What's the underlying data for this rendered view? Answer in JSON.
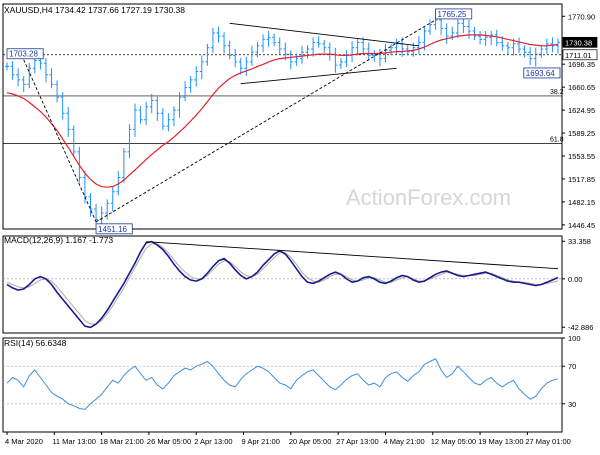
{
  "header": {
    "symbol_line": "XAUUSD,H4  1734.42 1737.66 1727.19 1730.38",
    "macd_label": "MACD(12,26,9) 1.167 -1.773",
    "rsi_label": "RSI(14) 56.6348",
    "watermark": "ActionForex.com"
  },
  "colors": {
    "price_bars": "#1e90ff",
    "moving_average": "#e8202a",
    "macd_line": "#1a1a8c",
    "macd_signal": "#aaaaaa",
    "rsi_line": "#3d8fe0",
    "trendlines": "#000000",
    "current_price_tag": "#000000"
  },
  "chart_data": [
    {
      "type": "line",
      "panel": "price",
      "description_series": "XAUUSD 4-hour candlestick/OHLC bars with moving average",
      "ylim": [
        1440,
        1790
      ],
      "y_ticks": [
        1446.45,
        1482.15,
        1517.85,
        1553.55,
        1589.25,
        1624.95,
        1660.65,
        1696.35,
        1732.05,
        1770.9
      ],
      "y_tick_labels": [
        "1446.45",
        "1482.15",
        "1517.85",
        "1553.55",
        "1589.25",
        "1624.95",
        "1660.65",
        "1696.35",
        "1732.05",
        "1770.90"
      ],
      "x_tick_labels": [
        "4 Mar 2020",
        "11 Mar 13:00",
        "18 Mar 21:00",
        "26 Mar 05:00",
        "2 Apr 13:00",
        "9 Apr 21:00",
        "20 Apr 05:00",
        "27 Apr 13:00",
        "4 May 21:00",
        "12 May 05:00",
        "19 May 13:00",
        "27 May 01:00"
      ],
      "x_tick_positions": [
        0,
        8.5,
        17,
        25.5,
        34,
        42.5,
        51,
        59.5,
        68,
        76.5,
        85,
        93.5
      ],
      "x": [
        0,
        1,
        2,
        3,
        4,
        5,
        6,
        7,
        8,
        9,
        10,
        11,
        12,
        13,
        14,
        15,
        16,
        17,
        18,
        19,
        20,
        21,
        22,
        23,
        24,
        25,
        26,
        27,
        28,
        29,
        30,
        31,
        32,
        33,
        34,
        35,
        36,
        37,
        38,
        39,
        40,
        41,
        42,
        43,
        44,
        45,
        46,
        47,
        48,
        49,
        50,
        51,
        52,
        53,
        54,
        55,
        56,
        57,
        58,
        59,
        60,
        61,
        62,
        63,
        64,
        65,
        66,
        67,
        68,
        69,
        70,
        71,
        72,
        73,
        74,
        75,
        76,
        77,
        78,
        79,
        80,
        81,
        82,
        83,
        84,
        85,
        86,
        87,
        88,
        89,
        90,
        91,
        92,
        93,
        94,
        95,
        96,
        97,
        98,
        99
      ],
      "series": [
        {
          "name": "",
          "role": "close",
          "values": [
            1693,
            1680,
            1672,
            1665,
            1690,
            1702,
            1698,
            1680,
            1665,
            1645,
            1620,
            1595,
            1560,
            1520,
            1490,
            1471,
            1455,
            1465,
            1480,
            1498,
            1520,
            1560,
            1595,
            1625,
            1610,
            1630,
            1640,
            1620,
            1600,
            1610,
            1625,
            1645,
            1660,
            1672,
            1685,
            1700,
            1722,
            1745,
            1740,
            1725,
            1710,
            1700,
            1690,
            1700,
            1715,
            1725,
            1735,
            1738,
            1730,
            1720,
            1712,
            1700,
            1705,
            1715,
            1720,
            1730,
            1728,
            1722,
            1712,
            1695,
            1700,
            1710,
            1722,
            1730,
            1720,
            1710,
            1712,
            1705,
            1718,
            1722,
            1728,
            1720,
            1716,
            1722,
            1730,
            1748,
            1758,
            1765,
            1752,
            1740,
            1745,
            1760,
            1755,
            1748,
            1740,
            1735,
            1738,
            1742,
            1730,
            1725,
            1722,
            1728,
            1720,
            1715,
            1705,
            1712,
            1720,
            1728,
            1725,
            1730.38
          ]
        },
        {
          "name": "",
          "role": "moving_average",
          "values": [
            1652,
            1650,
            1647,
            1643,
            1637,
            1630,
            1623,
            1614,
            1604,
            1593,
            1580,
            1567,
            1553,
            1539,
            1527,
            1517,
            1510,
            1506,
            1505,
            1506,
            1510,
            1516,
            1524,
            1532,
            1540,
            1548,
            1556,
            1563,
            1570,
            1576,
            1583,
            1591,
            1599,
            1608,
            1617,
            1627,
            1638,
            1649,
            1659,
            1667,
            1674,
            1679,
            1683,
            1686,
            1689,
            1693,
            1696,
            1700,
            1703,
            1705,
            1706,
            1707,
            1708,
            1709,
            1710,
            1711,
            1712,
            1712,
            1712,
            1711,
            1710,
            1710,
            1711,
            1712,
            1713,
            1713,
            1713,
            1713,
            1714,
            1715,
            1716,
            1716,
            1717,
            1718,
            1720,
            1723,
            1727,
            1731,
            1734,
            1736,
            1738,
            1740,
            1741,
            1742,
            1742,
            1742,
            1741,
            1740,
            1739,
            1737,
            1735,
            1733,
            1731,
            1729,
            1727,
            1726,
            1725,
            1725,
            1726,
            1727
          ]
        }
      ],
      "annotations": [
        {
          "text": "1765.25",
          "x": 77,
          "y": 1765.25,
          "kind": "swing-high label"
        },
        {
          "text": "1693.64",
          "x": 94,
          "y": 1693.64,
          "kind": "swing-low label"
        },
        {
          "text": "1451.16",
          "x": 16,
          "y": 1451.16,
          "kind": "swing-low label"
        },
        {
          "text": "1703.28",
          "x": 0,
          "y": 1703.28,
          "kind": "prior high label (truncated at left edge)"
        },
        {
          "text": "38.2",
          "y": 1647,
          "kind": "fibonacci level"
        },
        {
          "text": "61.8",
          "y": 1573,
          "kind": "fibonacci level"
        },
        {
          "text": "1730.38",
          "y": 1730.38,
          "kind": "current price tag"
        },
        {
          "text": "1711.01",
          "y": 1711.01,
          "kind": "horizontal level tag"
        }
      ],
      "horizontal_levels": [
        1711.01,
        1647,
        1573
      ],
      "trendlines": [
        {
          "from": [
            16,
            1451.16
          ],
          "to": [
            77,
            1765.25
          ],
          "style": "dashed",
          "label": "rising support"
        },
        {
          "from": [
            3,
            1703.28
          ],
          "to": [
            16,
            1451.16
          ],
          "style": "dashed",
          "label": "falling leg"
        },
        {
          "from": [
            40,
            1760
          ],
          "to": [
            74,
            1725
          ],
          "style": "solid",
          "label": "triangle upper"
        },
        {
          "from": [
            42,
            1666
          ],
          "to": [
            70,
            1690
          ],
          "style": "solid",
          "label": "triangle lower"
        }
      ]
    },
    {
      "type": "line",
      "panel": "macd",
      "title": "MACD(12,26,9) 1.167 -1.773",
      "ylim": [
        -48,
        38
      ],
      "y_ticks": [
        33.358,
        0.0,
        -42.886
      ],
      "y_tick_labels": [
        "33.358",
        "0.00",
        "-42.886"
      ],
      "x": [
        0,
        1,
        2,
        3,
        4,
        5,
        6,
        7,
        8,
        9,
        10,
        11,
        12,
        13,
        14,
        15,
        16,
        17,
        18,
        19,
        20,
        21,
        22,
        23,
        24,
        25,
        26,
        27,
        28,
        29,
        30,
        31,
        32,
        33,
        34,
        35,
        36,
        37,
        38,
        39,
        40,
        41,
        42,
        43,
        44,
        45,
        46,
        47,
        48,
        49,
        50,
        51,
        52,
        53,
        54,
        55,
        56,
        57,
        58,
        59,
        60,
        61,
        62,
        63,
        64,
        65,
        66,
        67,
        68,
        69,
        70,
        71,
        72,
        73,
        74,
        75,
        76,
        77,
        78,
        79,
        80,
        81,
        82,
        83,
        84,
        85,
        86,
        87,
        88,
        89,
        90,
        91,
        92,
        93,
        94,
        95,
        96,
        97,
        98,
        99
      ],
      "series": [
        {
          "name": "",
          "role": "macd",
          "values": [
            -5,
            -8,
            -10,
            -9,
            -5,
            0,
            2,
            0,
            -5,
            -12,
            -18,
            -24,
            -30,
            -36,
            -42,
            -43,
            -40,
            -35,
            -28,
            -20,
            -12,
            -4,
            5,
            14,
            24,
            32,
            33,
            30,
            26,
            20,
            13,
            7,
            2,
            -1,
            -2,
            0,
            5,
            11,
            16,
            18,
            14,
            8,
            3,
            0,
            2,
            6,
            12,
            17,
            22,
            25,
            22,
            16,
            9,
            2,
            -3,
            -4,
            -2,
            1,
            4,
            6,
            4,
            0,
            -3,
            -2,
            1,
            2,
            0,
            -3,
            -4,
            -2,
            1,
            3,
            2,
            -1,
            -3,
            -2,
            1,
            4,
            6,
            7,
            5,
            3,
            2,
            3,
            4,
            5,
            6,
            4,
            2,
            0,
            -2,
            -3,
            -3,
            -4,
            -5,
            -6,
            -5,
            -3,
            -1,
            1.167
          ]
        },
        {
          "name": "",
          "role": "signal",
          "values": [
            -3,
            -5,
            -7,
            -8,
            -7,
            -4,
            -1,
            0,
            -2,
            -7,
            -13,
            -19,
            -25,
            -31,
            -37,
            -40,
            -40,
            -37,
            -31,
            -24,
            -16,
            -8,
            1,
            10,
            19,
            27,
            31,
            31,
            28,
            23,
            17,
            11,
            6,
            2,
            0,
            0,
            3,
            8,
            13,
            16,
            15,
            11,
            6,
            3,
            2,
            4,
            9,
            14,
            19,
            23,
            23,
            19,
            13,
            6,
            1,
            -2,
            -3,
            -1,
            2,
            4,
            4,
            2,
            -1,
            -2,
            -1,
            1,
            1,
            -1,
            -3,
            -3,
            -1,
            1,
            2,
            0,
            -2,
            -2,
            0,
            2,
            4,
            6,
            5,
            4,
            3,
            3,
            3,
            4,
            5,
            5,
            3,
            1,
            -1,
            -2,
            -3,
            -3,
            -4,
            -5,
            -5,
            -4,
            -3,
            -1.773
          ]
        }
      ],
      "trendlines": [
        {
          "from": [
            25,
            33
          ],
          "to": [
            99,
            9
          ],
          "style": "solid",
          "label": "MACD falling resistance"
        }
      ]
    },
    {
      "type": "line",
      "panel": "rsi",
      "title": "RSI(14) 56.6348",
      "ylim": [
        0,
        100
      ],
      "y_ticks": [
        100,
        70,
        30
      ],
      "y_tick_labels": [
        "100",
        "70",
        "30"
      ],
      "x": [
        0,
        1,
        2,
        3,
        4,
        5,
        6,
        7,
        8,
        9,
        10,
        11,
        12,
        13,
        14,
        15,
        16,
        17,
        18,
        19,
        20,
        21,
        22,
        23,
        24,
        25,
        26,
        27,
        28,
        29,
        30,
        31,
        32,
        33,
        34,
        35,
        36,
        37,
        38,
        39,
        40,
        41,
        42,
        43,
        44,
        45,
        46,
        47,
        48,
        49,
        50,
        51,
        52,
        53,
        54,
        55,
        56,
        57,
        58,
        59,
        60,
        61,
        62,
        63,
        64,
        65,
        66,
        67,
        68,
        69,
        70,
        71,
        72,
        73,
        74,
        75,
        76,
        77,
        78,
        79,
        80,
        81,
        82,
        83,
        84,
        85,
        86,
        87,
        88,
        89,
        90,
        91,
        92,
        93,
        94,
        95,
        96,
        97,
        98,
        99
      ],
      "series": [
        {
          "name": "",
          "role": "rsi",
          "values": [
            52,
            58,
            55,
            48,
            60,
            66,
            58,
            50,
            42,
            38,
            35,
            30,
            28,
            25,
            24,
            30,
            35,
            40,
            48,
            55,
            52,
            60,
            66,
            70,
            62,
            55,
            58,
            50,
            46,
            52,
            60,
            64,
            68,
            66,
            70,
            72,
            75,
            70,
            62,
            55,
            50,
            48,
            56,
            62,
            66,
            70,
            68,
            64,
            58,
            52,
            50,
            46,
            55,
            60,
            64,
            66,
            60,
            54,
            48,
            45,
            50,
            56,
            60,
            62,
            55,
            50,
            52,
            48,
            58,
            62,
            64,
            58,
            54,
            60,
            64,
            72,
            75,
            78,
            66,
            58,
            62,
            70,
            64,
            58,
            52,
            50,
            55,
            58,
            52,
            48,
            52,
            55,
            46,
            40,
            35,
            38,
            46,
            52,
            55,
            56.63
          ]
        }
      ]
    }
  ]
}
